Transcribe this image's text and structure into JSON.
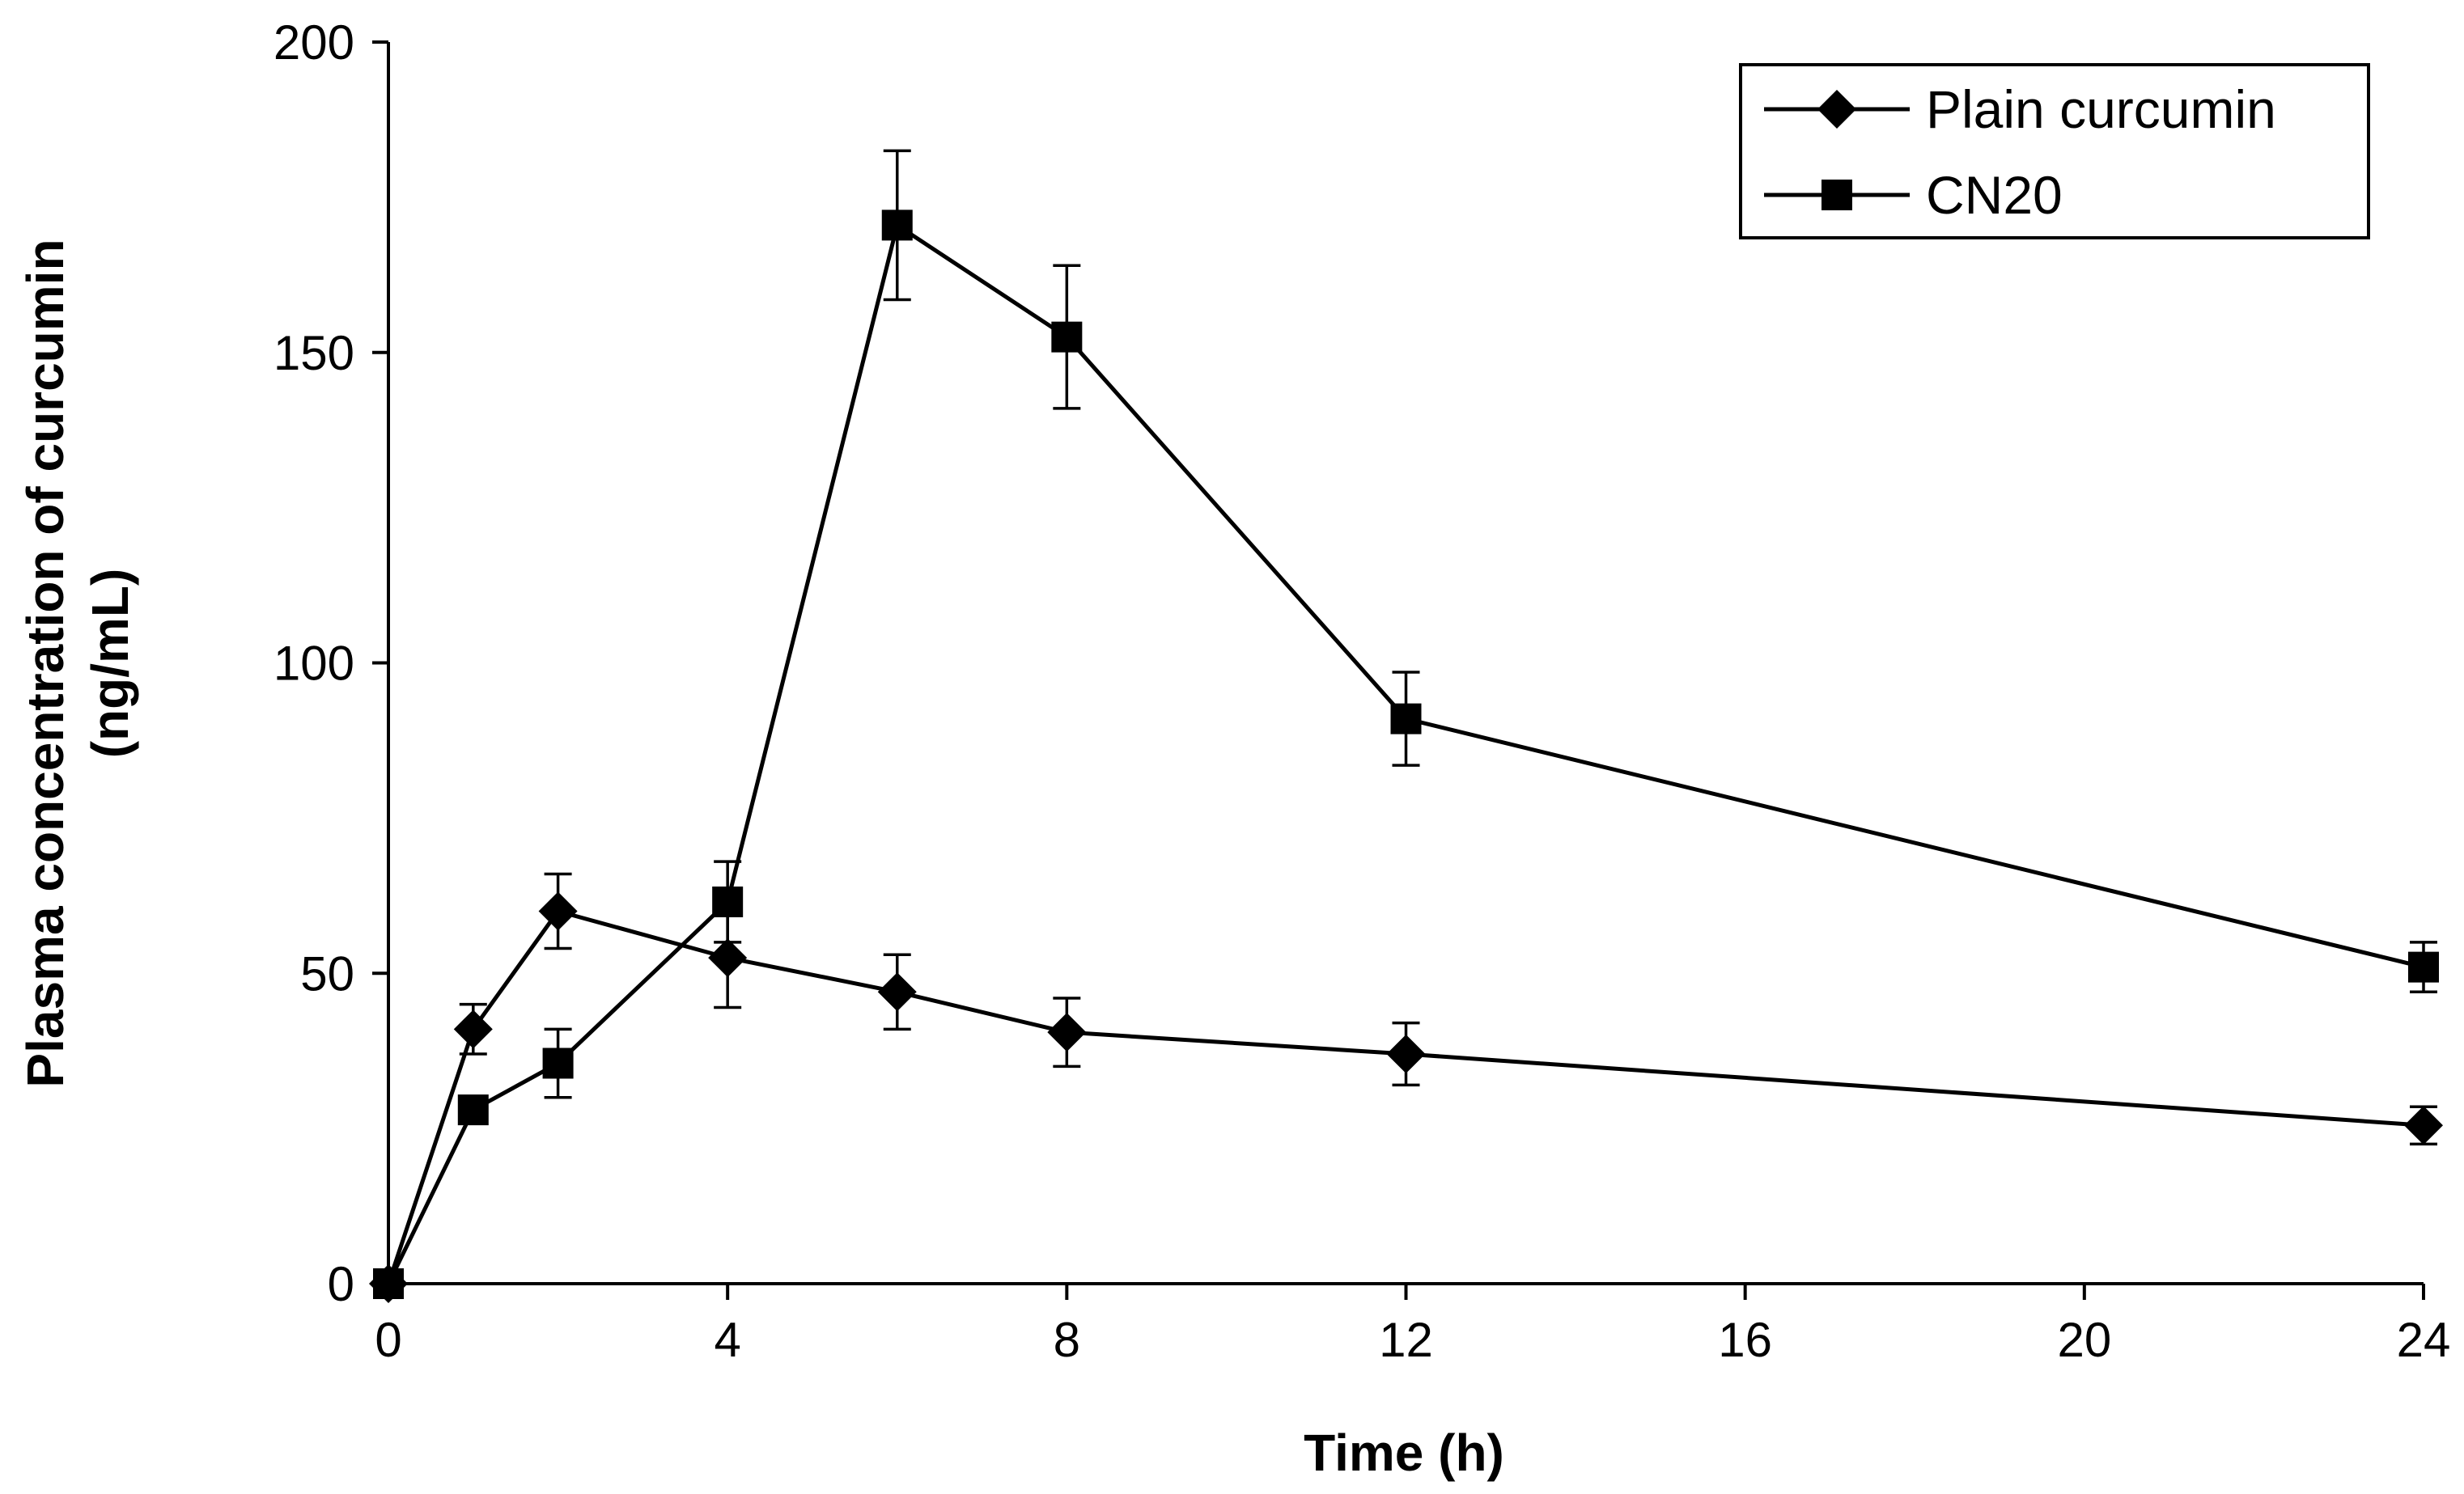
{
  "chart_data": {
    "type": "line",
    "title": "",
    "xlabel": "Time (h)",
    "ylabel_line1": "Plasma concentration of curcumin",
    "ylabel_line2": "(ng/mL)",
    "xlim": [
      0,
      24
    ],
    "ylim": [
      0,
      200
    ],
    "x_ticks": [
      0,
      4,
      8,
      12,
      16,
      20,
      24
    ],
    "y_ticks": [
      0,
      50,
      100,
      150,
      200
    ],
    "grid": false,
    "legend_position": "top-right",
    "series": [
      {
        "name": "Plain curcumin",
        "marker": "diamond",
        "x": [
          0,
          1,
          2,
          4,
          6,
          8,
          12,
          24
        ],
        "y": [
          0,
          41,
          60,
          52.5,
          47,
          40.5,
          37,
          25.5
        ],
        "error": [
          0,
          4,
          6,
          8,
          6,
          5.5,
          5,
          3
        ]
      },
      {
        "name": "CN20",
        "marker": "square",
        "x": [
          0,
          1,
          2,
          4,
          6,
          8,
          12,
          24
        ],
        "y": [
          0,
          28,
          35.5,
          61.5,
          170.5,
          152.5,
          91,
          51
        ],
        "error": [
          0,
          2,
          5.5,
          6.5,
          12,
          11.5,
          7.5,
          4
        ]
      }
    ],
    "colors": {
      "line": "#000000",
      "background": "#ffffff"
    }
  }
}
